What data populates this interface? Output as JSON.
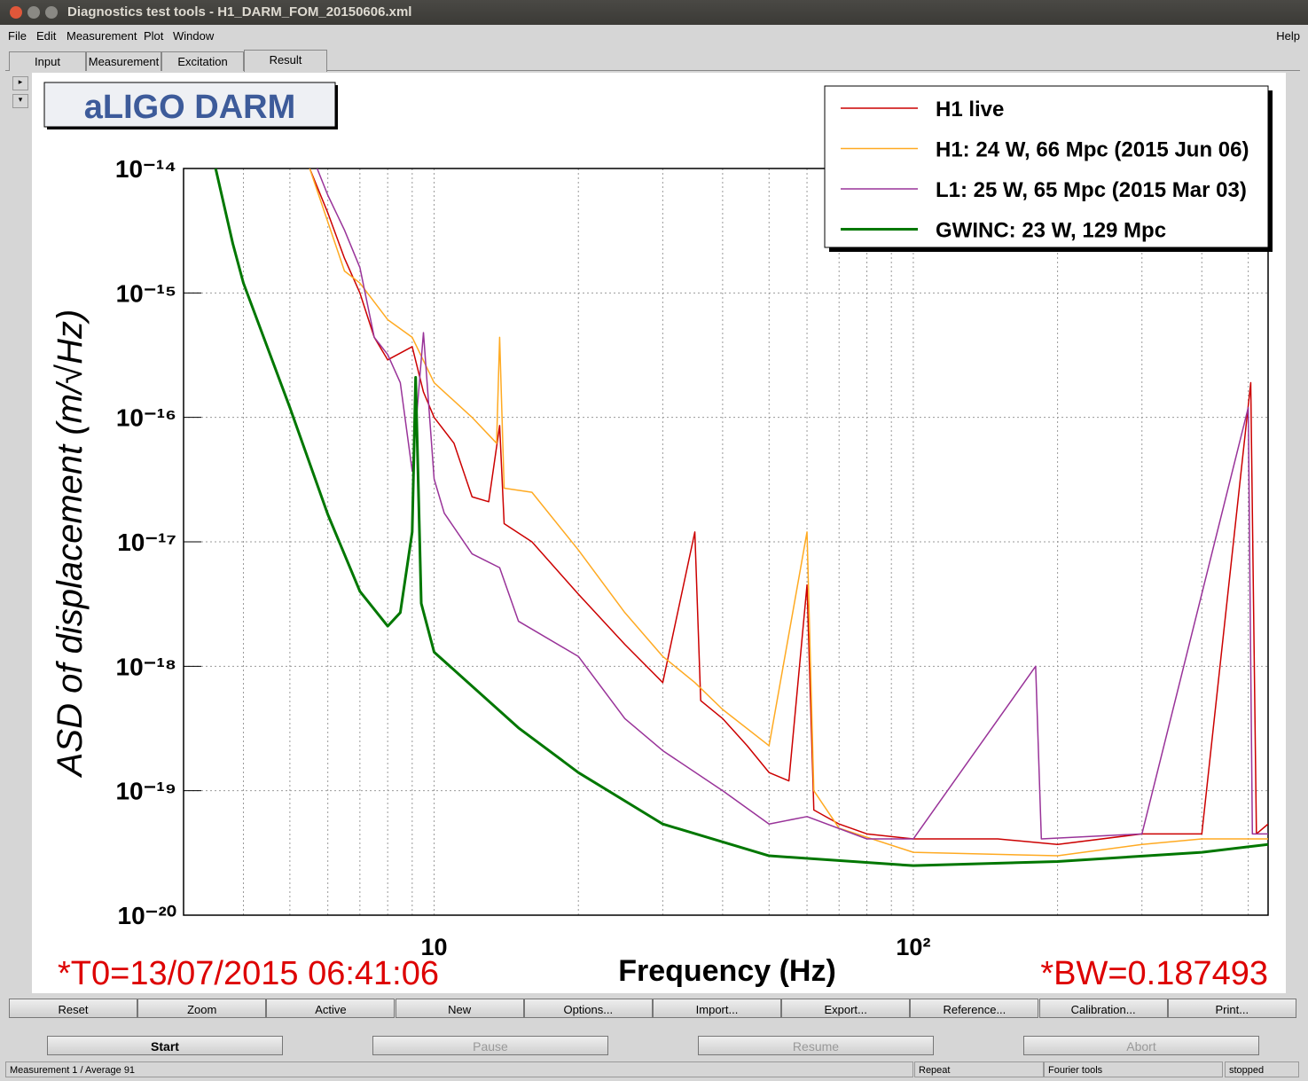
{
  "window": {
    "title": "Diagnostics test tools - H1_DARM_FOM_20150606.xml"
  },
  "menu": {
    "items": [
      "File",
      "Edit",
      "Measurement",
      "Plot",
      "Window"
    ],
    "help": "Help"
  },
  "tabs": [
    "Input",
    "Measurement",
    "Excitation",
    "Result"
  ],
  "chart_data": {
    "type": "line",
    "title": "aLIGO DARM",
    "x_label": "Frequency (Hz)",
    "y_label": "ASD of displacement (m/√Hz)",
    "xscale": "log",
    "yscale": "log",
    "grid": true,
    "legend": "upper right",
    "xlim": [
      3,
      550
    ],
    "ylim": [
      1e-20,
      1e-14
    ],
    "xticks": [
      10,
      {
        "value": 100,
        "label": "10²"
      }
    ],
    "xminorticks": [
      4,
      5,
      6,
      7,
      8,
      9,
      20,
      30,
      40,
      50,
      60,
      70,
      80,
      90,
      200,
      300,
      400,
      500
    ],
    "yticks": [
      {
        "value": 1e-20,
        "label": "10⁻²⁰"
      },
      {
        "value": 1e-19,
        "label": "10⁻¹⁹"
      },
      {
        "value": 1e-18,
        "label": "10⁻¹⁸"
      },
      {
        "value": 1e-17,
        "label": "10⁻¹⁷"
      },
      {
        "value": 1e-16,
        "label": "10⁻¹⁶"
      },
      {
        "value": 1e-15,
        "label": "10⁻¹⁵"
      },
      {
        "value": 1e-14,
        "label": "10⁻¹⁴"
      }
    ],
    "annotations": [
      "*T0=13/07/2015 06:41:06",
      "*BW=0.187493"
    ],
    "series": [
      {
        "name": "H1 live",
        "color": "#cc0000",
        "width": 1.5,
        "x": [
          5.5,
          6,
          6.5,
          7,
          7.5,
          8,
          9,
          9.5,
          10,
          11,
          12,
          13,
          13.7,
          14,
          16,
          20,
          25,
          30,
          35,
          36,
          40,
          45,
          50,
          55,
          60,
          62,
          70,
          80,
          100,
          150,
          200,
          300,
          400,
          506,
          520,
          550
        ],
        "values": [
          1e-14,
          4.4e-15,
          1.9e-15,
          1e-15,
          4.4e-16,
          2.9e-16,
          3.7e-16,
          1.6e-16,
          1e-16,
          6.2e-17,
          2.3e-17,
          2.1e-17,
          8.6e-17,
          1.4e-17,
          1e-17,
          3.8e-18,
          1.5e-18,
          7.4e-19,
          1.2e-17,
          5.3e-19,
          3.8e-19,
          2.3e-19,
          1.4e-19,
          1.2e-19,
          4.5e-18,
          7e-20,
          5.4e-20,
          4.5e-20,
          4.1e-20,
          4.1e-20,
          3.7e-20,
          4.5e-20,
          4.5e-20,
          1.9e-16,
          4.5e-20,
          5.4e-20
        ]
      },
      {
        "name": "H1: 24 W, 66 Mpc (2015 Jun 06)",
        "color": "#ffaa22",
        "width": 1.5,
        "x": [
          5.5,
          6.5,
          7,
          8,
          9,
          10,
          12,
          13.5,
          13.7,
          14,
          16,
          20,
          25,
          30,
          35,
          40,
          50,
          60,
          62,
          70,
          100,
          200,
          300,
          400,
          550
        ],
        "values": [
          1e-14,
          1.5e-15,
          1.2e-15,
          6.1e-16,
          4.4e-16,
          1.9e-16,
          1e-16,
          6.2e-17,
          4.4e-16,
          2.7e-17,
          2.5e-17,
          8.6e-18,
          2.7e-18,
          1.2e-18,
          7.4e-19,
          4.5e-19,
          2.3e-19,
          1.2e-17,
          1e-19,
          5e-20,
          3.2e-20,
          3e-20,
          3.7e-20,
          4.1e-20,
          4.1e-20
        ]
      },
      {
        "name": "L1: 25 W, 65 Mpc (2015 Mar 03)",
        "color": "#993399",
        "width": 1.5,
        "x": [
          5.7,
          6,
          6.5,
          7,
          7.5,
          8,
          8.5,
          9,
          9.5,
          10,
          10.5,
          12,
          13.7,
          15,
          20,
          25,
          30,
          40,
          50,
          60,
          80,
          100,
          180,
          185,
          300,
          500,
          510,
          550
        ],
        "values": [
          1e-14,
          6.1e-15,
          3.2e-15,
          1.6e-15,
          4.4e-16,
          3.2e-16,
          1.9e-16,
          3.7e-17,
          4.8e-16,
          3.2e-17,
          1.7e-17,
          8e-18,
          6.2e-18,
          2.3e-18,
          1.2e-18,
          3.8e-19,
          2.1e-19,
          1e-19,
          5.4e-20,
          6.2e-20,
          4.1e-20,
          4.1e-20,
          1e-18,
          4.1e-20,
          4.5e-20,
          1.2e-16,
          4.5e-20,
          4.5e-20
        ]
      },
      {
        "name": "GWINC: 23 W, 129 Mpc",
        "color": "#007700",
        "width": 3,
        "x": [
          3.5,
          3.8,
          4,
          5,
          6,
          7,
          8,
          8.5,
          9,
          9.15,
          9.4,
          10,
          15,
          20,
          30,
          50,
          100,
          200,
          400,
          550
        ],
        "values": [
          1e-14,
          2.5e-15,
          1.2e-15,
          1.2e-16,
          1.66e-17,
          4e-18,
          2.1e-18,
          2.7e-18,
          1.2e-17,
          2.1e-16,
          3.2e-18,
          1.3e-18,
          3.2e-19,
          1.4e-19,
          5.4e-20,
          3e-20,
          2.5e-20,
          2.7e-20,
          3.2e-20,
          3.7e-20
        ]
      }
    ]
  },
  "plot_buttons": [
    "Reset",
    "Zoom",
    "Active",
    "New",
    "Options...",
    "Import...",
    "Export...",
    "Reference...",
    "Calibration...",
    "Print..."
  ],
  "control_buttons": [
    {
      "label": "Start",
      "enabled": true
    },
    {
      "label": "Pause",
      "enabled": false
    },
    {
      "label": "Resume",
      "enabled": false
    },
    {
      "label": "Abort",
      "enabled": false
    }
  ],
  "status": [
    "Measurement 1 / Average 91",
    "Repeat",
    "Fourier tools",
    "stopped"
  ]
}
